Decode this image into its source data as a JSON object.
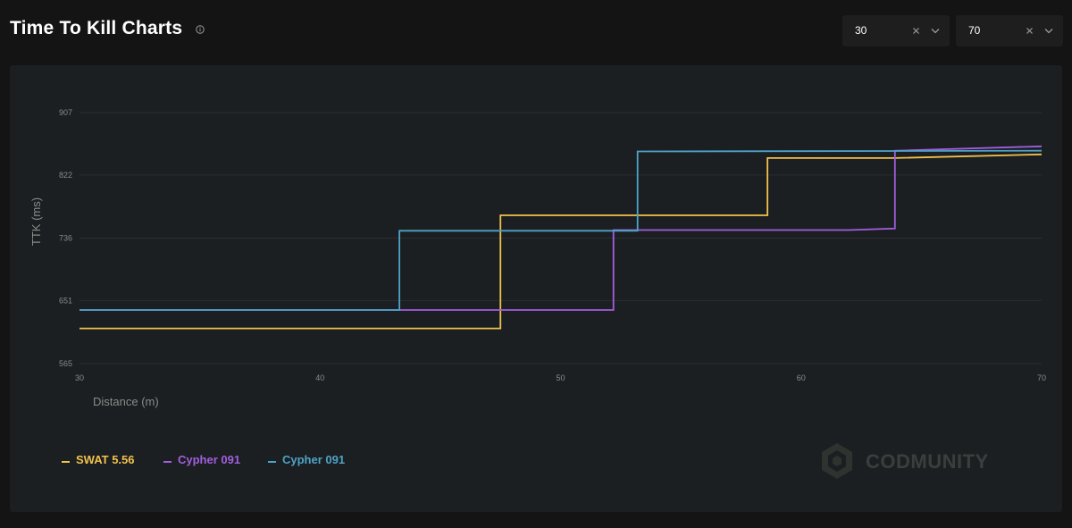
{
  "header": {
    "title": "Time To Kill Charts",
    "info_icon": "info-icon",
    "range_start": {
      "value": "30",
      "icons": [
        "clear-icon",
        "chevron-down-icon"
      ]
    },
    "range_end": {
      "value": "70",
      "icons": [
        "clear-icon",
        "chevron-down-icon"
      ]
    }
  },
  "watermark": {
    "text": "CODMUNITY",
    "logo_icon": "hexagon-logo-icon"
  },
  "colors": {
    "background": "#141414",
    "panel": "#1b1f21",
    "grid": "#2b2f31",
    "swat": "#f2c14e",
    "cypher_purple": "#a35ee0",
    "cypher_blue": "#4ea3c8"
  },
  "chart_data": {
    "type": "line",
    "step": true,
    "title": "",
    "xlabel": "Distance (m)",
    "ylabel": "TTK (ms)",
    "xlim": [
      30,
      70
    ],
    "ylim": [
      565,
      907
    ],
    "x_ticks": [
      "30",
      "40",
      "50",
      "60",
      "70"
    ],
    "y_ticks": [
      "907",
      "822",
      "736",
      "651",
      "565"
    ],
    "grid": true,
    "legend_position": "bottom-left",
    "series": [
      {
        "name": "SWAT 5.56",
        "color": "#f2c14e",
        "points": [
          [
            30,
            613
          ],
          [
            47.5,
            613
          ],
          [
            47.5,
            767
          ],
          [
            58.6,
            767
          ],
          [
            58.6,
            845
          ],
          [
            63.9,
            845
          ],
          [
            70,
            850
          ]
        ]
      },
      {
        "name": "Cypher 091",
        "color": "#a35ee0",
        "points": [
          [
            30,
            638
          ],
          [
            52.2,
            638
          ],
          [
            52.2,
            747
          ],
          [
            62,
            747
          ],
          [
            63.9,
            749
          ],
          [
            63.9,
            855
          ],
          [
            70,
            861
          ]
        ]
      },
      {
        "name": "Cypher 091",
        "color": "#4ea3c8",
        "points": [
          [
            30,
            638
          ],
          [
            43.3,
            638
          ],
          [
            43.3,
            746
          ],
          [
            53.2,
            746
          ],
          [
            53.2,
            854
          ],
          [
            70,
            855
          ]
        ]
      }
    ]
  }
}
